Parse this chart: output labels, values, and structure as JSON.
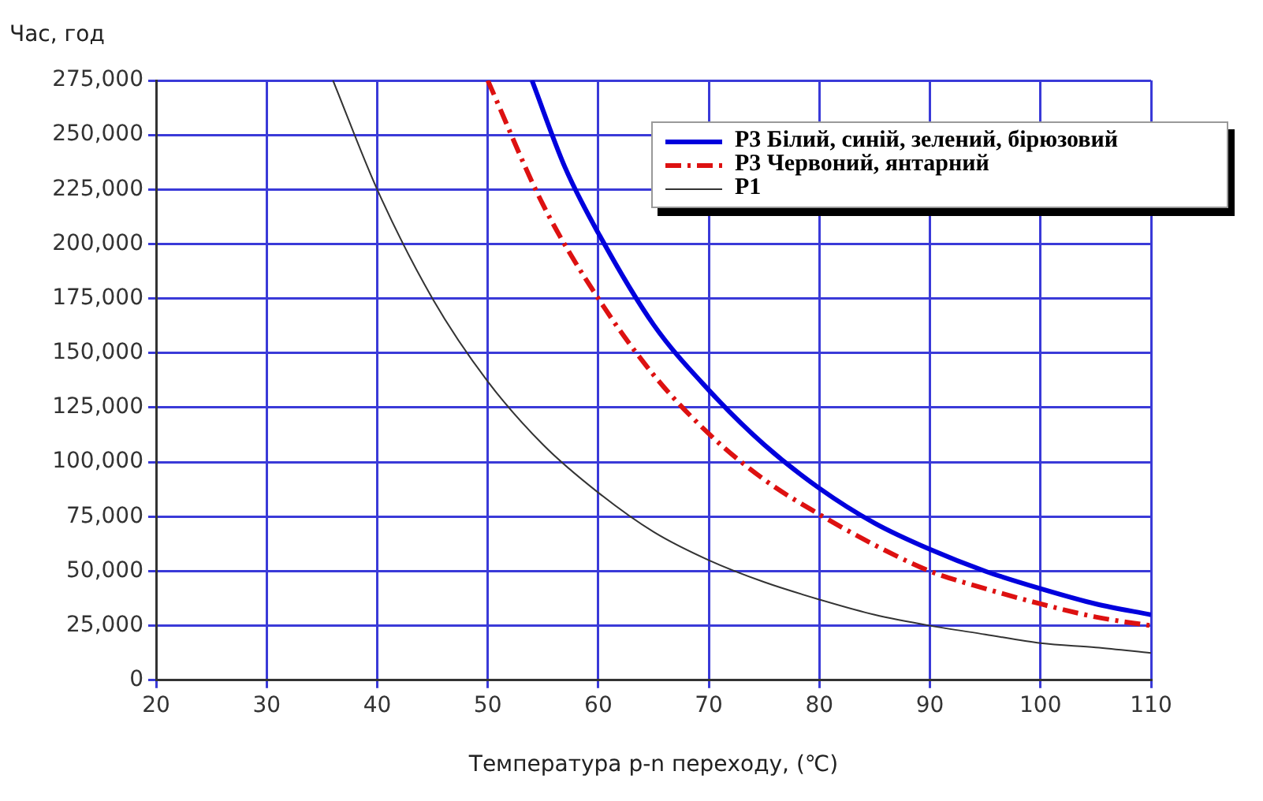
{
  "chart_data": {
    "type": "line",
    "xlabel": "Температура p-n переходу, (℃)",
    "ylabel": "Час, год",
    "xlim": [
      20,
      110
    ],
    "xticks": [
      20,
      30,
      40,
      50,
      60,
      70,
      80,
      90,
      100,
      110
    ],
    "ylim": [
      0,
      275000
    ],
    "yticks": [
      0,
      {
        "value": 25000,
        "label": "25,000"
      },
      {
        "value": 50000,
        "label": "50,000"
      },
      {
        "value": 75000,
        "label": "75,000"
      },
      {
        "value": 100000,
        "label": "100,000"
      },
      {
        "value": 125000,
        "label": "125,000"
      },
      {
        "value": 150000,
        "label": "150,000"
      },
      {
        "value": 175000,
        "label": "175,000"
      },
      {
        "value": 200000,
        "label": "200,000"
      },
      {
        "value": 225000,
        "label": "225,000"
      },
      {
        "value": 250000,
        "label": "250,000"
      },
      {
        "value": 275000,
        "label": "275,000"
      }
    ],
    "grid": true,
    "legend": "top right",
    "marker": "none",
    "series": [
      {
        "name": "P3 Білий, синій, зелений, бірюзовий",
        "color": "#0000dd",
        "line_style": "solid",
        "x": [
          54,
          57,
          60,
          65,
          70,
          75,
          80,
          85,
          90,
          95,
          100,
          105,
          110
        ],
        "values": [
          275000,
          235000,
          205000,
          163000,
          133000,
          108000,
          88000,
          72000,
          60000,
          50000,
          42000,
          35000,
          30000
        ]
      },
      {
        "name": "P3 Червоний, янтарний",
        "color": "#dd1111",
        "line_style": "dashed",
        "x": [
          50,
          55,
          60,
          65,
          70,
          75,
          80,
          85,
          90,
          95,
          100,
          105,
          110
        ],
        "values": [
          275000,
          218000,
          175000,
          140000,
          113000,
          92000,
          76000,
          62000,
          50000,
          42000,
          35000,
          29000,
          25000
        ]
      },
      {
        "name": "P1",
        "color": "#333333",
        "line_style": "solid",
        "x": [
          36,
          40,
          45,
          50,
          55,
          60,
          65,
          70,
          75,
          80,
          85,
          90,
          95,
          100,
          105,
          110
        ],
        "values": [
          275000,
          225000,
          175000,
          137000,
          108000,
          86000,
          68000,
          55000,
          45000,
          37000,
          30000,
          25000,
          21000,
          17000,
          15000,
          12500
        ]
      }
    ]
  }
}
